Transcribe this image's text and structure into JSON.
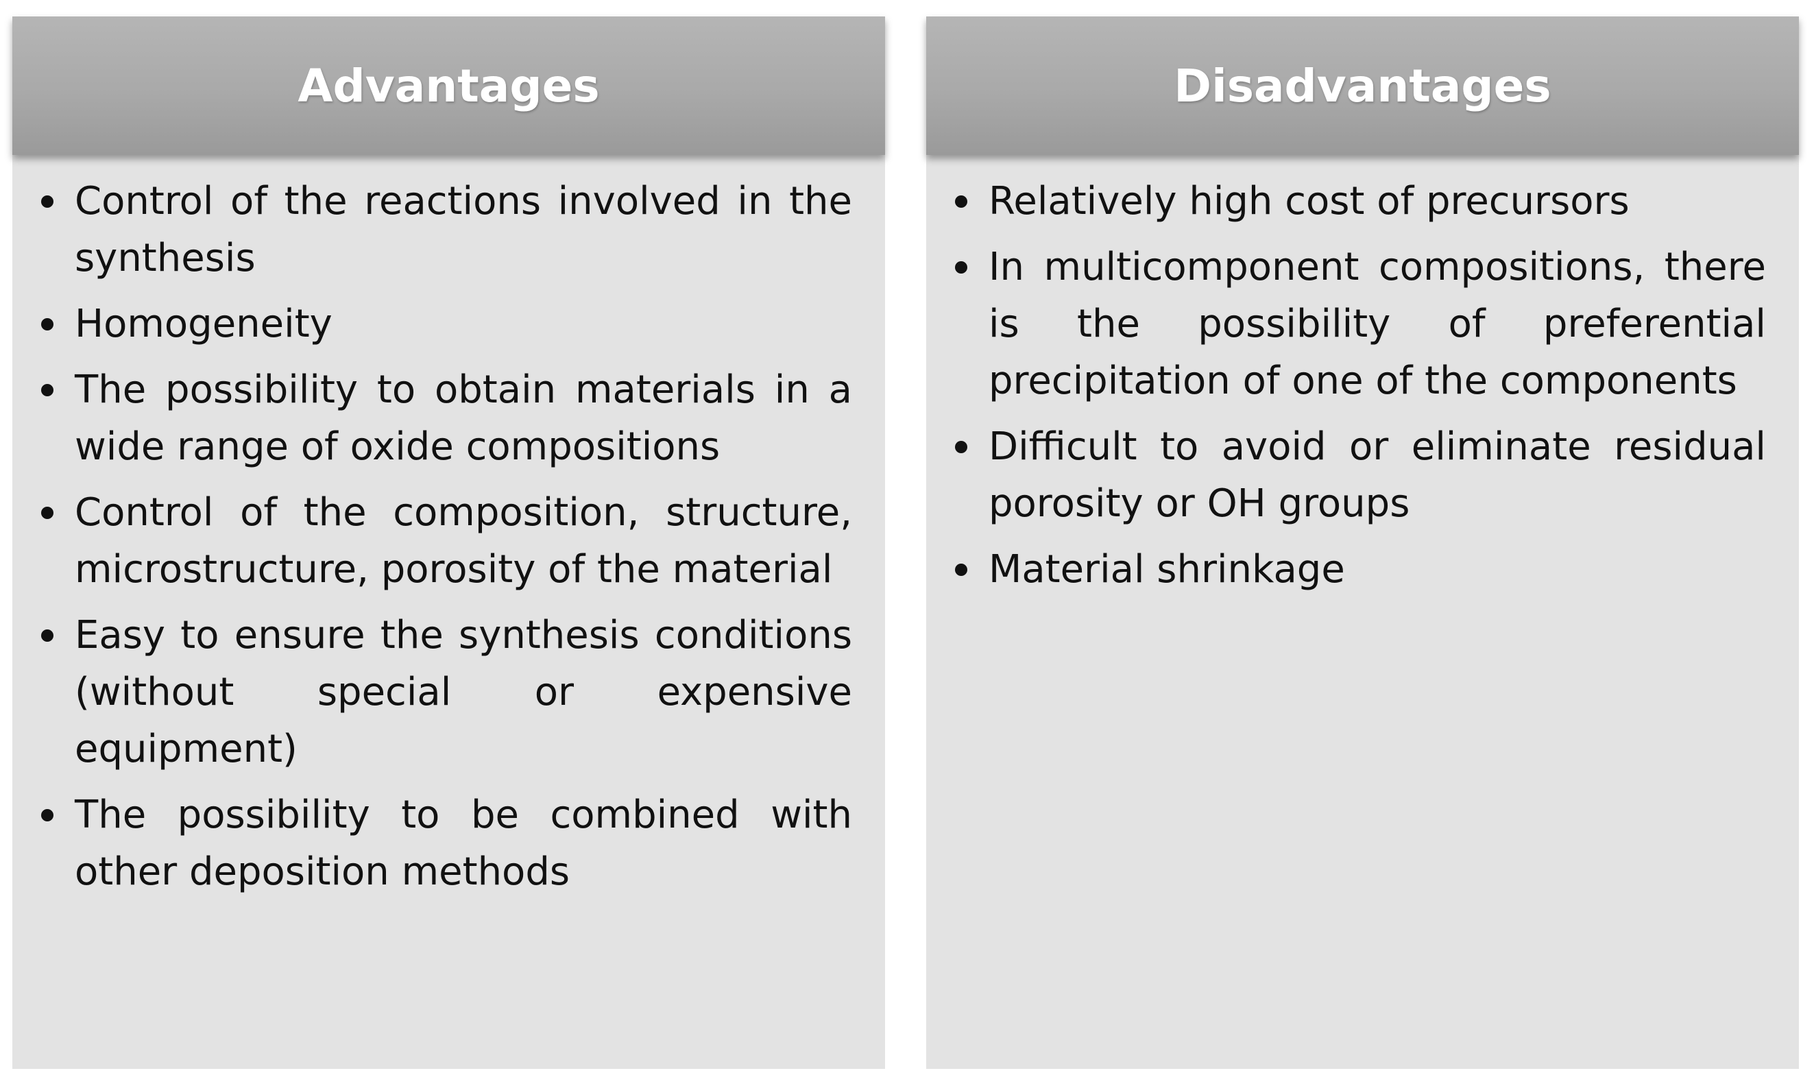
{
  "advantages": {
    "title": "Advantages",
    "items": [
      "Control of the reactions involved in the synthesis",
      "Homogeneity",
      "The possibility to obtain materials in a wide range of oxide compositions",
      "Control of the composition, structure, microstructure, porosity of the material",
      "Easy to ensure the synthesis conditions (without special or expensive equipment)",
      "The possibility to be combined with other deposition methods"
    ]
  },
  "disadvantages": {
    "title": "Disadvantages",
    "items": [
      "Relatively high cost of precursors",
      "In multicomponent compositions, there is the possibility of preferential precipitation of one of the components",
      "Difficult to avoid or eliminate residual porosity or OH groups",
      "Material shrinkage"
    ]
  },
  "colors": {
    "panel_background": "#e3e3e3",
    "header_background": "#a9a9a9",
    "header_text": "#ffffff",
    "body_text": "#111111"
  }
}
